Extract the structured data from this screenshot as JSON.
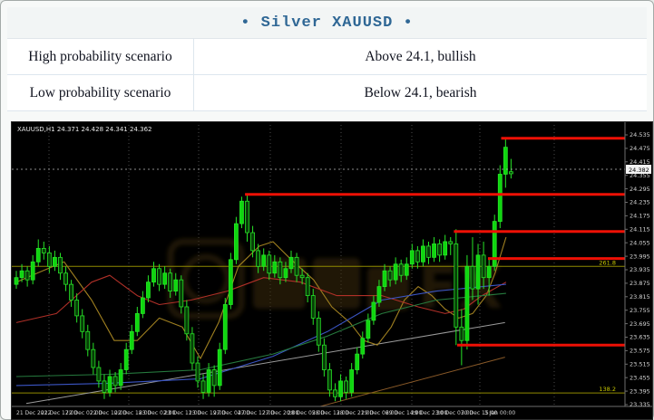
{
  "header": {
    "title": "• Silver XAUUSD •"
  },
  "table": {
    "rows": [
      {
        "label": "High probability scenario",
        "value": "Above 24.1, bullish"
      },
      {
        "label": "Low probability scenario",
        "value": "Below 24.1, bearish"
      }
    ]
  },
  "chart_data": {
    "type": "candlestick",
    "symbol": "XAUUSD",
    "timeframe": "H1",
    "info_line": "XAUUSD,H1 24.371 24.428 24.341 24.362",
    "last_bar": {
      "open": 24.371,
      "high": 24.428,
      "low": 24.341,
      "close": 24.362
    },
    "current_price_label": "24.382",
    "current_price": 24.382,
    "price_axis": {
      "max_label": 24.535,
      "min_label": 23.335,
      "step": 0.06,
      "labels": [
        "24.535",
        "24.475",
        "24.415",
        "24.355",
        "24.295",
        "24.235",
        "24.175",
        "24.115",
        "24.055",
        "23.995",
        "23.935",
        "23.875",
        "23.815",
        "23.755",
        "23.695",
        "23.635",
        "23.575",
        "23.515",
        "23.455",
        "23.395",
        "23.335"
      ]
    },
    "time_axis": [
      "21 Dec 2022",
      "21 Dec 17:00",
      "22 Dec 02:00",
      "22 Dec 10:00",
      "22 Dec 18:00",
      "23 Dec 02:00",
      "23 Dec 11:00",
      "23 Dec 19:00",
      "27 Dec 04:00",
      "27 Dec 12:00",
      "27 Dec 20:00",
      "28 Dec 05:00",
      "28 Dec 13:00",
      "28 Dec 21:00",
      "29 Dec 06:00",
      "29 Dec 14:00",
      "29 Dec 23:00",
      "30 Dec 07:00",
      "30 Dec 15:00",
      "3 Jan 00:00"
    ],
    "ohlc": [
      [
        23.87,
        23.93,
        23.85,
        23.9
      ],
      [
        23.9,
        23.96,
        23.88,
        23.93
      ],
      [
        23.93,
        23.95,
        23.86,
        23.89
      ],
      [
        23.89,
        24.0,
        23.87,
        23.97
      ],
      [
        23.97,
        24.07,
        23.95,
        24.03
      ],
      [
        24.03,
        24.06,
        23.98,
        24.01
      ],
      [
        24.01,
        24.04,
        23.92,
        23.95
      ],
      [
        23.95,
        24.02,
        23.93,
        23.99
      ],
      [
        23.99,
        24.01,
        23.89,
        23.92
      ],
      [
        23.92,
        23.95,
        23.84,
        23.87
      ],
      [
        23.87,
        23.89,
        23.77,
        23.8
      ],
      [
        23.8,
        23.83,
        23.7,
        23.73
      ],
      [
        23.73,
        23.76,
        23.63,
        23.66
      ],
      [
        23.66,
        23.69,
        23.55,
        23.58
      ],
      [
        23.58,
        23.61,
        23.47,
        23.5
      ],
      [
        23.5,
        23.53,
        23.41,
        23.44
      ],
      [
        23.44,
        23.47,
        23.36,
        23.39
      ],
      [
        23.39,
        23.49,
        23.37,
        23.46
      ],
      [
        23.46,
        23.48,
        23.39,
        23.42
      ],
      [
        23.42,
        23.52,
        23.4,
        23.49
      ],
      [
        23.49,
        23.61,
        23.47,
        23.58
      ],
      [
        23.58,
        23.69,
        23.56,
        23.66
      ],
      [
        23.66,
        23.77,
        23.64,
        23.74
      ],
      [
        23.74,
        23.84,
        23.72,
        23.81
      ],
      [
        23.81,
        23.91,
        23.79,
        23.88
      ],
      [
        23.88,
        23.97,
        23.86,
        23.94
      ],
      [
        23.94,
        23.96,
        23.84,
        23.87
      ],
      [
        23.87,
        23.95,
        23.85,
        23.92
      ],
      [
        23.92,
        23.94,
        23.81,
        23.84
      ],
      [
        23.84,
        23.92,
        23.82,
        23.89
      ],
      [
        23.89,
        23.91,
        23.74,
        23.77
      ],
      [
        23.77,
        23.8,
        23.62,
        23.65
      ],
      [
        23.65,
        23.68,
        23.49,
        23.52
      ],
      [
        23.52,
        23.55,
        23.41,
        23.44
      ],
      [
        23.44,
        23.47,
        23.36,
        23.39
      ],
      [
        23.39,
        23.52,
        23.37,
        23.49
      ],
      [
        23.49,
        23.51,
        23.37,
        23.42
      ],
      [
        23.42,
        23.61,
        23.4,
        23.58
      ],
      [
        23.58,
        23.81,
        23.56,
        23.78
      ],
      [
        23.78,
        24.01,
        23.76,
        23.98
      ],
      [
        23.98,
        24.17,
        23.96,
        24.14
      ],
      [
        24.14,
        24.26,
        24.12,
        24.24
      ],
      [
        24.24,
        24.27,
        24.06,
        24.1
      ],
      [
        24.1,
        24.13,
        23.99,
        24.02
      ],
      [
        24.02,
        24.05,
        23.92,
        23.95
      ],
      [
        23.95,
        24.03,
        23.93,
        24.0
      ],
      [
        24.0,
        24.02,
        23.89,
        23.92
      ],
      [
        23.92,
        24.0,
        23.9,
        23.97
      ],
      [
        23.97,
        23.99,
        23.87,
        23.9
      ],
      [
        23.9,
        23.97,
        23.88,
        23.94
      ],
      [
        23.94,
        24.02,
        23.92,
        23.99
      ],
      [
        23.99,
        24.01,
        23.88,
        23.91
      ],
      [
        23.91,
        23.94,
        23.87,
        23.9
      ],
      [
        23.9,
        23.92,
        23.79,
        23.82
      ],
      [
        23.82,
        23.85,
        23.69,
        23.72
      ],
      [
        23.72,
        23.75,
        23.57,
        23.6
      ],
      [
        23.6,
        23.63,
        23.46,
        23.49
      ],
      [
        23.49,
        23.52,
        23.37,
        23.4
      ],
      [
        23.4,
        23.43,
        23.35,
        23.37
      ],
      [
        23.37,
        23.47,
        23.35,
        23.44
      ],
      [
        23.44,
        23.46,
        23.36,
        23.39
      ],
      [
        23.39,
        23.52,
        23.37,
        23.49
      ],
      [
        23.49,
        23.59,
        23.47,
        23.56
      ],
      [
        23.56,
        23.66,
        23.54,
        23.63
      ],
      [
        23.63,
        23.74,
        23.61,
        23.71
      ],
      [
        23.71,
        23.82,
        23.69,
        23.79
      ],
      [
        23.79,
        23.89,
        23.77,
        23.86
      ],
      [
        23.86,
        23.96,
        23.84,
        23.93
      ],
      [
        23.93,
        23.95,
        23.86,
        23.89
      ],
      [
        23.89,
        23.99,
        23.87,
        23.96
      ],
      [
        23.96,
        23.98,
        23.88,
        23.91
      ],
      [
        23.91,
        23.99,
        23.89,
        23.96
      ],
      [
        23.96,
        24.05,
        23.94,
        24.02
      ],
      [
        24.02,
        24.04,
        23.94,
        23.97
      ],
      [
        23.97,
        24.07,
        23.95,
        24.04
      ],
      [
        24.04,
        24.06,
        23.96,
        23.99
      ],
      [
        23.99,
        24.08,
        23.97,
        24.05
      ],
      [
        24.05,
        24.07,
        23.97,
        24.0
      ],
      [
        24.0,
        24.09,
        23.98,
        24.06
      ],
      [
        24.06,
        24.08,
        24.0,
        24.05
      ],
      [
        24.05,
        24.115,
        23.6,
        23.68
      ],
      [
        23.68,
        23.76,
        23.51,
        23.62
      ],
      [
        23.62,
        24.0,
        23.58,
        23.95
      ],
      [
        23.95,
        24.08,
        23.8,
        23.85
      ],
      [
        23.85,
        24.05,
        23.78,
        24.0
      ],
      [
        24.0,
        24.06,
        23.85,
        23.9
      ],
      [
        23.9,
        23.99,
        23.82,
        23.95
      ],
      [
        23.95,
        24.18,
        23.93,
        24.15
      ],
      [
        24.15,
        24.4,
        24.12,
        24.36
      ],
      [
        24.36,
        24.52,
        24.3,
        24.48
      ],
      [
        24.371,
        24.428,
        24.341,
        24.362
      ]
    ],
    "resistance_lines": [
      {
        "price": 24.52,
        "from_bar": 88.2
      },
      {
        "price": 24.27,
        "from_bar": 41.6
      },
      {
        "price": 24.105,
        "from_bar": 79.6
      },
      {
        "price": 23.985,
        "from_bar": 85.8
      },
      {
        "price": 23.6,
        "from_bar": 80.2
      }
    ],
    "fib_lines": [
      {
        "price": 23.95,
        "label": "261.8"
      },
      {
        "price": 23.387,
        "label": "138.2"
      }
    ],
    "moving_averages": [
      {
        "name": "ma-gold",
        "color": "#a08020",
        "points": [
          [
            0,
            23.88
          ],
          [
            3.8,
            23.92
          ],
          [
            8.7,
            23.97
          ],
          [
            13.7,
            23.8
          ],
          [
            17.8,
            23.62
          ],
          [
            22,
            23.62
          ],
          [
            26,
            23.72
          ],
          [
            30.2,
            23.68
          ],
          [
            33.5,
            23.54
          ],
          [
            36.8,
            23.7
          ],
          [
            40.4,
            23.95
          ],
          [
            44.2,
            24.04
          ],
          [
            46.7,
            24.06
          ],
          [
            50,
            23.98
          ],
          [
            54.1,
            23.89
          ],
          [
            57.4,
            23.77
          ],
          [
            60.7,
            23.7
          ],
          [
            63.2,
            23.62
          ],
          [
            65.7,
            23.6
          ],
          [
            68.2,
            23.68
          ],
          [
            70.6,
            23.8
          ],
          [
            73.1,
            23.86
          ],
          [
            75.6,
            23.82
          ],
          [
            78,
            23.76
          ],
          [
            80.5,
            23.72
          ],
          [
            83,
            23.74
          ],
          [
            85.5,
            23.82
          ],
          [
            87.1,
            23.92
          ],
          [
            89.1,
            24.08
          ]
        ]
      },
      {
        "name": "ma-red",
        "color": "#b03028",
        "points": [
          [
            0,
            23.7
          ],
          [
            7.3,
            23.74
          ],
          [
            13.7,
            23.88
          ],
          [
            17,
            23.91
          ],
          [
            22,
            23.82
          ],
          [
            26,
            23.78
          ],
          [
            31.8,
            23.8
          ],
          [
            38.4,
            23.84
          ],
          [
            45,
            23.9
          ],
          [
            51.7,
            23.88
          ],
          [
            58.3,
            23.82
          ],
          [
            66.5,
            23.82
          ],
          [
            73.1,
            23.77
          ],
          [
            78,
            23.74
          ],
          [
            81.4,
            23.76
          ],
          [
            84.7,
            23.82
          ],
          [
            89.1,
            23.88
          ]
        ]
      },
      {
        "name": "ma-blue",
        "color": "#3b55c4",
        "points": [
          [
            0,
            23.42
          ],
          [
            17,
            23.43
          ],
          [
            33.5,
            23.45
          ],
          [
            46.7,
            23.55
          ],
          [
            56.6,
            23.66
          ],
          [
            66.5,
            23.8
          ],
          [
            76.4,
            23.84
          ],
          [
            89.1,
            23.87
          ]
        ]
      },
      {
        "name": "ma-green",
        "color": "#267a3e",
        "points": [
          [
            0,
            23.46
          ],
          [
            17,
            23.47
          ],
          [
            33.5,
            23.49
          ],
          [
            46.7,
            23.56
          ],
          [
            56.6,
            23.64
          ],
          [
            66.5,
            23.74
          ],
          [
            76.4,
            23.8
          ],
          [
            89.1,
            23.83
          ]
        ]
      }
    ],
    "trendlines": [
      {
        "name": "trendline-gray",
        "color": "#9b9b9b",
        "points": [
          [
            1.8,
            23.34
          ],
          [
            88.9,
            23.7
          ]
        ]
      },
      {
        "name": "trendline-brown",
        "color": "#8a5a28",
        "points": [
          [
            55.3,
            23.327
          ],
          [
            88.9,
            23.546
          ]
        ]
      }
    ],
    "colors": {
      "bull_fill": "#0fd60f",
      "bear_fill": "#073f07",
      "candle_stroke": "#27e427",
      "resistance": "#ee1005",
      "fib": "#8f8a00",
      "fib_label": "#c9c900",
      "grid": "#4b4b4b",
      "axis": "#6e6e6e",
      "axis_text": "#d4d4d4",
      "watermark": "#3f2f08"
    },
    "layout": {
      "day_separator_x": [
        41,
        129,
        206,
        285,
        363,
        441,
        516,
        598
      ],
      "time_label_x": [
        5,
        32,
        59,
        86,
        113,
        140,
        168,
        195,
        222,
        249,
        276,
        304,
        331,
        358,
        385,
        412,
        440,
        468,
        495,
        521
      ]
    }
  }
}
